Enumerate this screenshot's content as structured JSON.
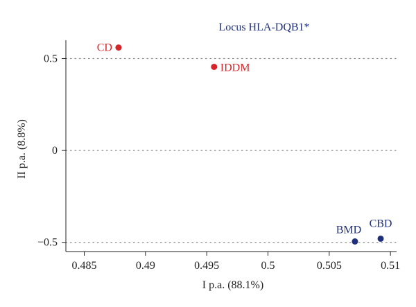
{
  "chart_data": {
    "type": "scatter",
    "title": "Locus HLA-DQB1*",
    "xlabel": "I p.a. (88.1%)",
    "ylabel": "II p.a. (8.8%)",
    "xlim": [
      0.4835,
      0.5105
    ],
    "ylim": [
      -0.55,
      0.6
    ],
    "x_ticks": [
      0.485,
      0.49,
      0.495,
      0.5,
      0.505,
      0.51
    ],
    "x_tick_labels": [
      "0.485",
      "0.49",
      "0.495",
      "0.5",
      "0.505",
      "0.51"
    ],
    "y_ticks": [
      -0.5,
      0,
      0.5
    ],
    "y_tick_labels": [
      "−0.5",
      "0",
      "0.5"
    ],
    "horizontal_gridlines": [
      -0.5,
      0,
      0.5
    ],
    "grid_style": "dotted",
    "points": [
      {
        "label": "CD",
        "x": 0.4878,
        "y": 0.56,
        "color": "#d7262b",
        "label_side": "left"
      },
      {
        "label": "IDDM",
        "x": 0.4956,
        "y": 0.455,
        "color": "#d7262b",
        "label_side": "right"
      },
      {
        "label": "BMD",
        "x": 0.5071,
        "y": -0.495,
        "color": "#1f2f7a",
        "label_side": "above-left"
      },
      {
        "label": "CBD",
        "x": 0.5092,
        "y": -0.48,
        "color": "#1f2f7a",
        "label_side": "above"
      }
    ],
    "colors": {
      "title": "#1f2f7a",
      "axis": "#222222",
      "grid": "#888888"
    }
  }
}
